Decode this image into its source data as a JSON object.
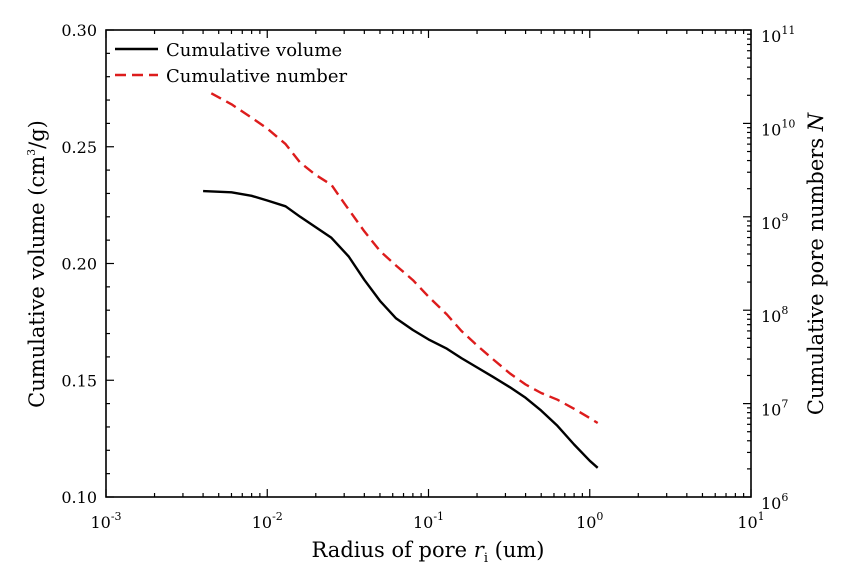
{
  "chart_data": {
    "type": "line",
    "x_axis": {
      "label_main": "Radius of pore ",
      "label_var": "r",
      "label_sub": "i",
      "label_unit": " (um)",
      "scale": "log",
      "range": [
        0.001,
        10
      ],
      "ticks": [
        {
          "value": 0.001,
          "base": "10",
          "exp": "-3"
        },
        {
          "value": 0.01,
          "base": "10",
          "exp": "-2"
        },
        {
          "value": 0.1,
          "base": "10",
          "exp": "-1"
        },
        {
          "value": 1,
          "base": "10",
          "exp": "0"
        },
        {
          "value": 10,
          "base": "10",
          "exp": "1"
        }
      ]
    },
    "y_axis_left": {
      "label_main": "Cumulative volume (cm",
      "label_sup": "3",
      "label_tail": "/g)",
      "scale": "linear",
      "range": [
        0.1,
        0.3
      ],
      "ticks": [
        "0.10",
        "0.15",
        "0.20",
        "0.25",
        "0.30"
      ]
    },
    "y_axis_right": {
      "label_main": "Cumulative pore numbers ",
      "label_var": "N",
      "scale": "log",
      "range": [
        1000000,
        100000000000
      ],
      "ticks": [
        {
          "value": 1000000,
          "base": "10",
          "exp": "6"
        },
        {
          "value": 10000000,
          "base": "10",
          "exp": "7"
        },
        {
          "value": 100000000,
          "base": "10",
          "exp": "8"
        },
        {
          "value": 1000000000,
          "base": "10",
          "exp": "9"
        },
        {
          "value": 10000000000,
          "base": "10",
          "exp": "10"
        },
        {
          "value": 100000000000,
          "base": "10",
          "exp": "11"
        }
      ]
    },
    "legend": {
      "placement": "top-left",
      "entries": [
        "Cumulative volume",
        "Cumulative number"
      ]
    },
    "grid": false,
    "series": [
      {
        "name": "Cumulative volume",
        "axis": "left",
        "color": "#000000",
        "dash": "solid",
        "points": [
          [
            0.004,
            0.231
          ],
          [
            0.006,
            0.2305
          ],
          [
            0.008,
            0.229
          ],
          [
            0.01,
            0.227
          ],
          [
            0.013,
            0.2245
          ],
          [
            0.016,
            0.22
          ],
          [
            0.02,
            0.2155
          ],
          [
            0.025,
            0.211
          ],
          [
            0.032,
            0.203
          ],
          [
            0.04,
            0.193
          ],
          [
            0.05,
            0.184
          ],
          [
            0.063,
            0.1765
          ],
          [
            0.08,
            0.1715
          ],
          [
            0.1,
            0.1675
          ],
          [
            0.13,
            0.1635
          ],
          [
            0.16,
            0.1595
          ],
          [
            0.2,
            0.1555
          ],
          [
            0.25,
            0.1515
          ],
          [
            0.32,
            0.147
          ],
          [
            0.4,
            0.1425
          ],
          [
            0.5,
            0.137
          ],
          [
            0.63,
            0.1305
          ],
          [
            0.8,
            0.1225
          ],
          [
            1.0,
            0.1155
          ],
          [
            1.12,
            0.1125
          ]
        ]
      },
      {
        "name": "Cumulative number",
        "axis": "right",
        "color": "#dd1c1c",
        "dash": "dashed",
        "points": [
          [
            0.0045,
            21000000000
          ],
          [
            0.006,
            16000000000
          ],
          [
            0.008,
            11500000000
          ],
          [
            0.01,
            8800000000
          ],
          [
            0.013,
            6000000000
          ],
          [
            0.016,
            3800000000
          ],
          [
            0.02,
            2800000000
          ],
          [
            0.025,
            2200000000
          ],
          [
            0.03,
            1400000000
          ],
          [
            0.04,
            700000000
          ],
          [
            0.05,
            430000000
          ],
          [
            0.063,
            300000000
          ],
          [
            0.08,
            210000000
          ],
          [
            0.1,
            140000000
          ],
          [
            0.13,
            90000000
          ],
          [
            0.16,
            60000000
          ],
          [
            0.2,
            42000000
          ],
          [
            0.25,
            30000000
          ],
          [
            0.32,
            21000000
          ],
          [
            0.4,
            16000000
          ],
          [
            0.5,
            13000000
          ],
          [
            0.63,
            11000000
          ],
          [
            0.8,
            8800000
          ],
          [
            1.0,
            7000000
          ],
          [
            1.12,
            6200000
          ]
        ]
      }
    ]
  }
}
